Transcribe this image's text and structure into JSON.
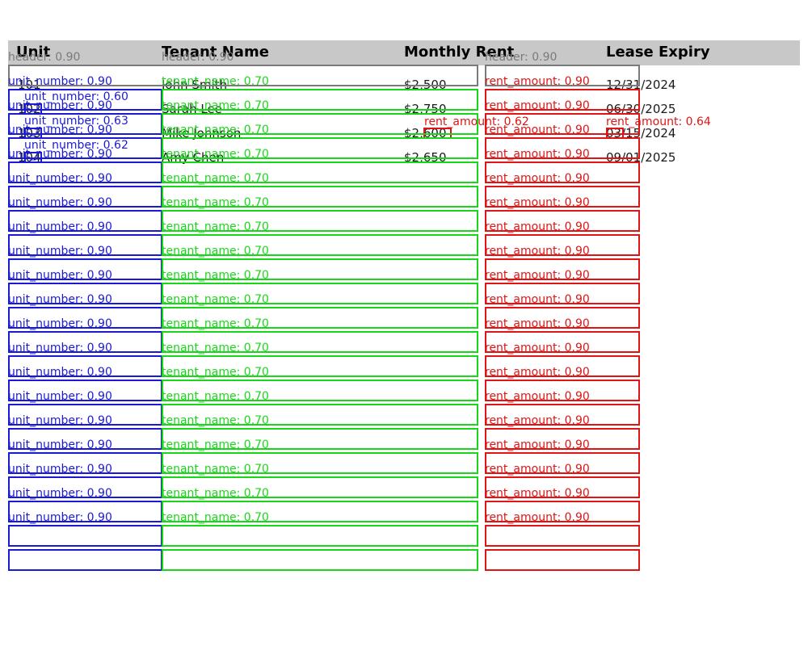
{
  "table": {
    "headers": [
      "Unit",
      "Tenant Name",
      "Monthly Rent",
      "Lease Expiry"
    ],
    "rows": [
      {
        "unit": "101",
        "tenant": "John Smith",
        "rent": "$2,500",
        "expiry": "12/31/2024"
      },
      {
        "unit": "102",
        "tenant": "Sarah Lee",
        "rent": "$2,750",
        "expiry": "06/30/2025"
      },
      {
        "unit": "103",
        "tenant": "Mike Johnson",
        "rent": "$2,600",
        "expiry": "03/15/2024"
      },
      {
        "unit": "104",
        "tenant": "Amy Chen",
        "rent": "$2,650",
        "expiry": "09/01/2025"
      }
    ]
  },
  "detections": {
    "header_label": "header: 0.90",
    "unit_label": "unit_number: 0.90",
    "tenant_label": "tenant_name: 0.70",
    "rent_label": "rent_amount: 0.90",
    "small_unit_labels": [
      "unit_number: 0.60",
      "unit_number: 0.63",
      "unit_number: 0.62"
    ],
    "rent_small_label": "rent_amount: 0.62",
    "expiry_small_label": "rent_amount: 0.64",
    "column_row_count": 19
  },
  "colors": {
    "header_band": "#c8c8c8",
    "unit_number": "#1a1ad6",
    "tenant_name": "#1ad61a",
    "rent_amount": "#e01414",
    "header": "#7a7a7a"
  }
}
